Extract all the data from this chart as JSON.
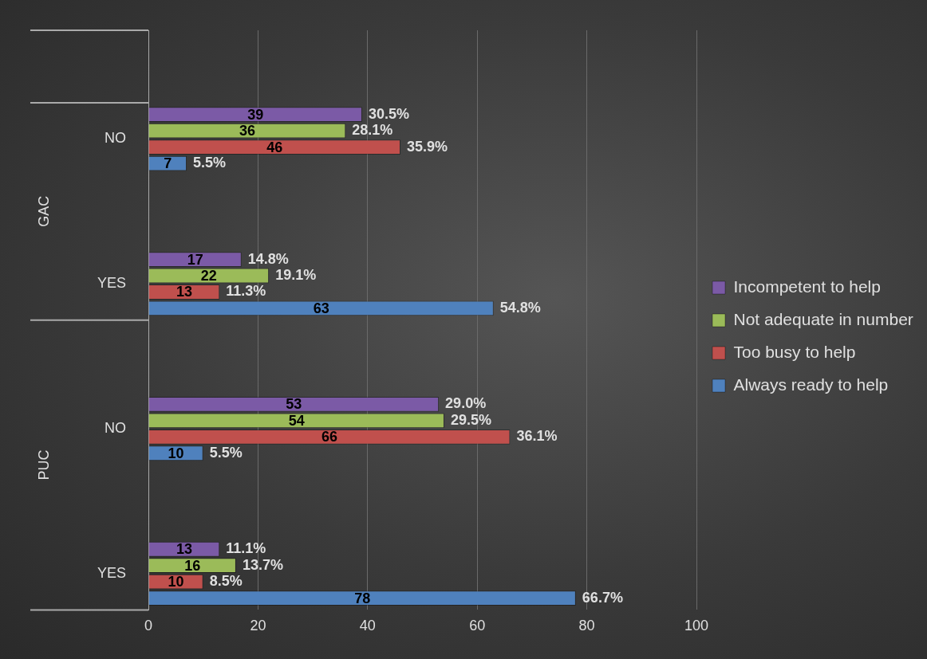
{
  "chart_data": {
    "type": "bar",
    "orientation": "horizontal",
    "categories": [
      null,
      "NO",
      null,
      "YES",
      null,
      "NO",
      null,
      "YES"
    ],
    "annotations": [
      "GAC",
      "PUC",
      "30.5%",
      "14.8%",
      "29.0%",
      "11.1%",
      "28.1%",
      "19.1%",
      "29.5%",
      "13.7%",
      "35.9%",
      "11.3%",
      "36.1%",
      "8.5%",
      "5.5%",
      "54.8%",
      "5.5%",
      "66.7%"
    ],
    "series": [
      {
        "name": "Incompetent to help",
        "color": "#7b5aa6",
        "values": [
          null,
          39,
          null,
          17,
          null,
          53,
          null,
          13
        ]
      },
      {
        "name": "Not adequate in number",
        "color": "#9bbb59",
        "values": [
          null,
          36,
          null,
          22,
          null,
          54,
          null,
          16
        ]
      },
      {
        "name": "Too busy to help",
        "color": "#c0504d",
        "values": [
          null,
          46,
          null,
          13,
          null,
          66,
          null,
          10
        ]
      },
      {
        "name": "Always ready to help",
        "color": "#4f81bd",
        "values": [
          null,
          7,
          null,
          63,
          null,
          10,
          null,
          78
        ]
      }
    ],
    "xlim": [
      0,
      100
    ],
    "xticks": [
      0,
      20,
      40,
      60,
      80,
      100
    ],
    "grid": "x",
    "legend": "right",
    "data_labels": true
  }
}
